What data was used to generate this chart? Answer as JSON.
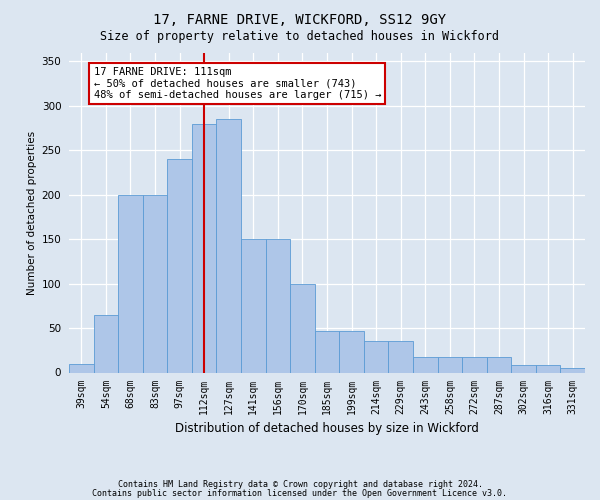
{
  "title": "17, FARNE DRIVE, WICKFORD, SS12 9GY",
  "subtitle": "Size of property relative to detached houses in Wickford",
  "xlabel": "Distribution of detached houses by size in Wickford",
  "ylabel": "Number of detached properties",
  "categories": [
    "39sqm",
    "54sqm",
    "68sqm",
    "83sqm",
    "97sqm",
    "112sqm",
    "127sqm",
    "141sqm",
    "156sqm",
    "170sqm",
    "185sqm",
    "199sqm",
    "214sqm",
    "229sqm",
    "243sqm",
    "258sqm",
    "272sqm",
    "287sqm",
    "302sqm",
    "316sqm",
    "331sqm"
  ],
  "bar_values": [
    10,
    65,
    200,
    200,
    240,
    280,
    285,
    150,
    150,
    100,
    47,
    47,
    35,
    35,
    18,
    18,
    18,
    18,
    8,
    8,
    5
  ],
  "annotation_text": "17 FARNE DRIVE: 111sqm\n← 50% of detached houses are smaller (743)\n48% of semi-detached houses are larger (715) →",
  "bar_color": "#aec6e8",
  "bar_edge_color": "#5b9bd5",
  "vline_color": "#cc0000",
  "vline_x_pos": 5.0,
  "bg_color": "#dce6f1",
  "annotation_box_edge": "#cc0000",
  "ylim": [
    0,
    360
  ],
  "yticks": [
    0,
    50,
    100,
    150,
    200,
    250,
    300,
    350
  ],
  "footer_line1": "Contains HM Land Registry data © Crown copyright and database right 2024.",
  "footer_line2": "Contains public sector information licensed under the Open Government Licence v3.0."
}
